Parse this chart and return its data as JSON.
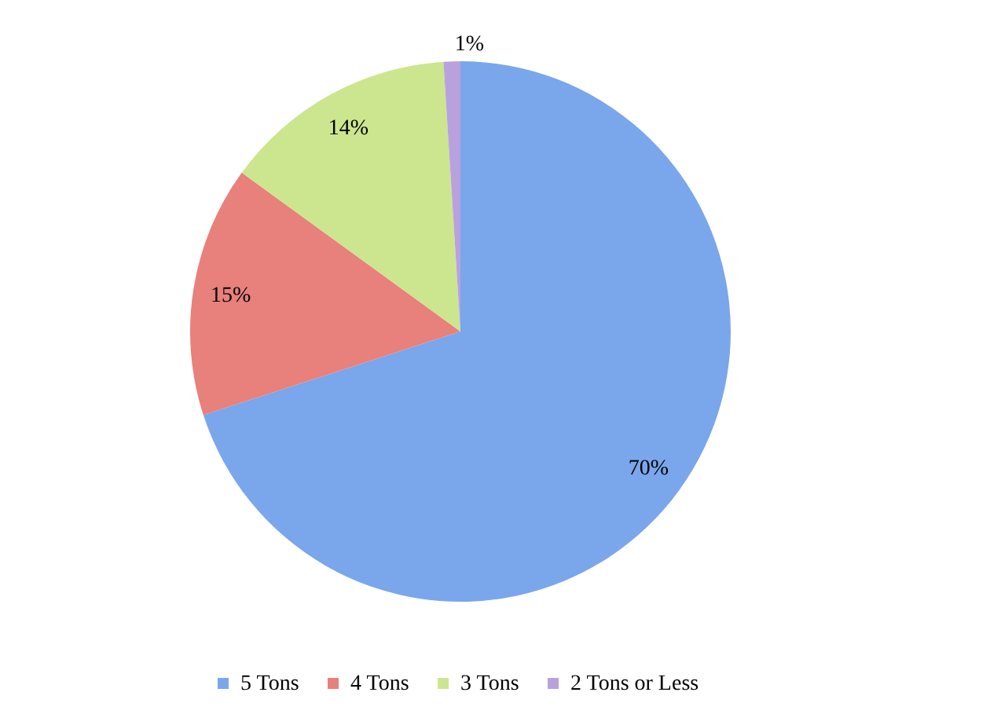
{
  "chart_data": {
    "type": "pie",
    "categories": [
      "5 Tons",
      "4 Tons",
      "3 Tons",
      "2 Tons or Less"
    ],
    "values": [
      70,
      15,
      14,
      1
    ],
    "colors": [
      "#7aa6ec",
      "#e8807b",
      "#cbe68f",
      "#b9a1de"
    ],
    "value_labels": [
      "70%",
      "15%",
      "14%",
      "1%"
    ],
    "legend": "bottom"
  }
}
